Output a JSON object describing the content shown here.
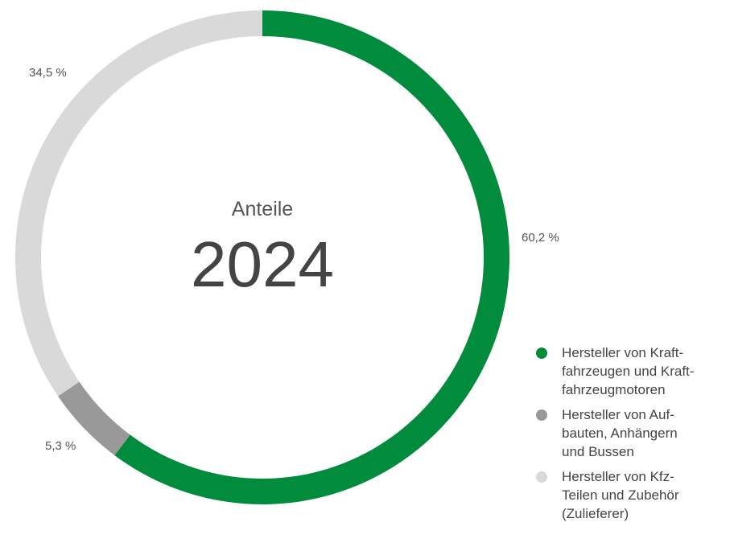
{
  "chart_data": {
    "type": "pie",
    "variant": "donut",
    "center_caption": "Anteile",
    "center_value": "2024",
    "categories": [
      "Hersteller von Kraft-\nfahrzeugen und Kraft-\nfahrzeugmotoren",
      "Hersteller von Auf-\nbauten, Anhängern\nund Bussen",
      "Hersteller von Kfz-\nTeilen und Zubehör\n(Zulieferer)"
    ],
    "values": [
      60.2,
      5.3,
      34.5
    ],
    "value_labels": [
      "60,2 %",
      "5,3 %",
      "34,5 %"
    ],
    "colors": [
      "#008c3c",
      "#999999",
      "#d8d9d8"
    ],
    "legend_position": "bottom-right"
  }
}
